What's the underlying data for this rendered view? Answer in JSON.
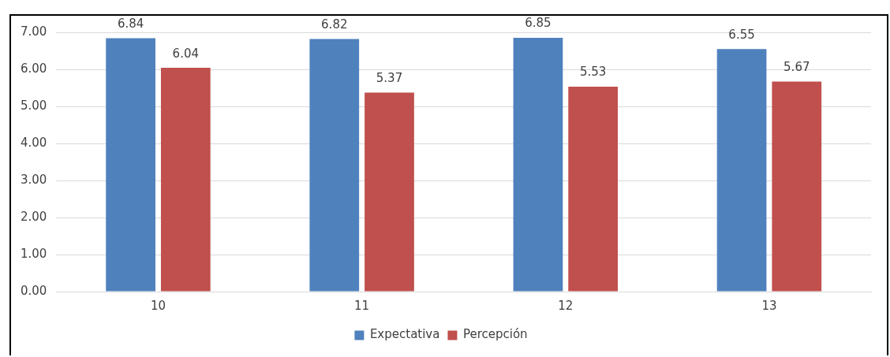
{
  "chart_data": {
    "type": "bar",
    "categories": [
      "10",
      "11",
      "12",
      "13"
    ],
    "series": [
      {
        "name": "Expectativa",
        "color": "#4f81bd",
        "values": [
          6.84,
          6.82,
          6.85,
          6.55
        ]
      },
      {
        "name": "Percepción",
        "color": "#c0504d",
        "values": [
          6.04,
          5.37,
          5.53,
          5.67
        ]
      }
    ],
    "ylim": [
      0,
      7
    ],
    "yticks": [
      {
        "value": 0,
        "label": "0.00"
      },
      {
        "value": 1,
        "label": "1.00"
      },
      {
        "value": 2,
        "label": "2.00"
      },
      {
        "value": 3,
        "label": "3.00"
      },
      {
        "value": 4,
        "label": "4.00"
      },
      {
        "value": 5,
        "label": "5.00"
      },
      {
        "value": 6,
        "label": "6.00"
      },
      {
        "value": 7,
        "label": "7.00"
      }
    ],
    "grid": "y",
    "legend": "bottom",
    "data_labels": true
  }
}
